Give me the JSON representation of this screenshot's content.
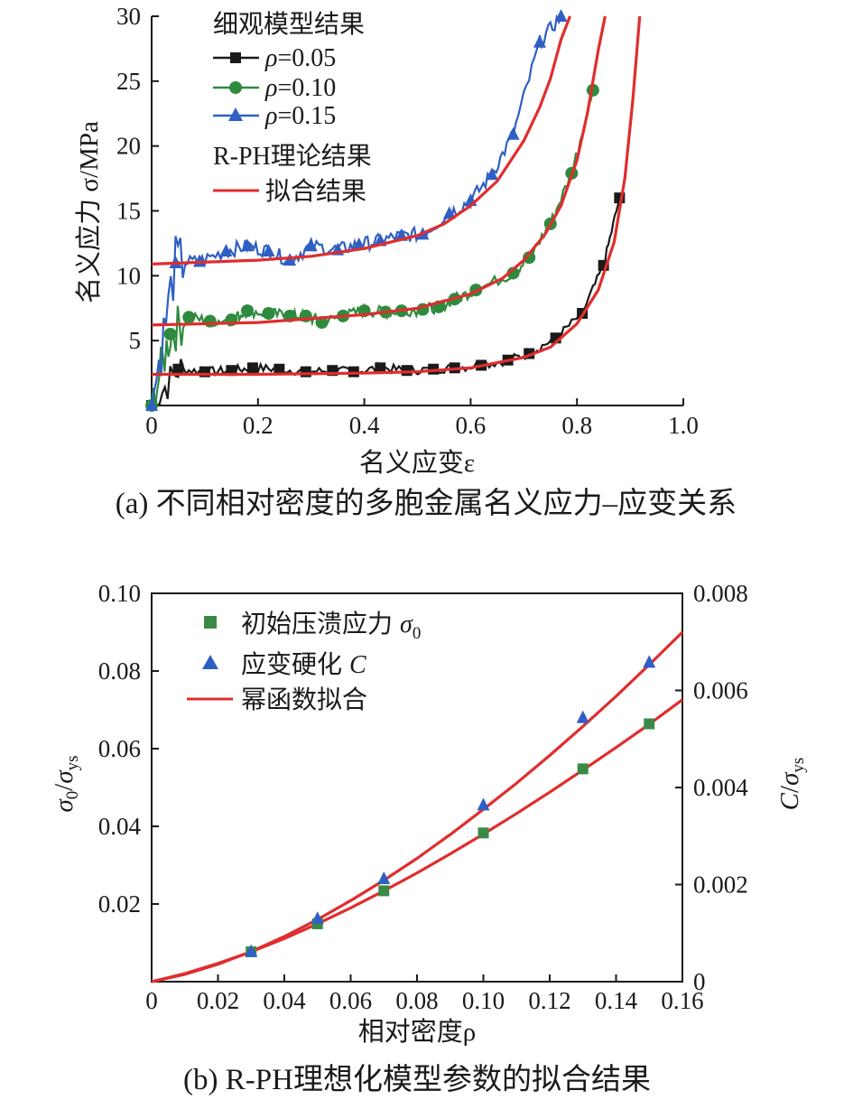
{
  "chart_data": [
    {
      "type": "line",
      "caption": "(a) 不同相对密度的多胞金属名义应力–应变关系",
      "xlabel": "名义应变ε",
      "ylabel": "名义应力 σ/MPa",
      "xlim": [
        0,
        1.0
      ],
      "ylim": [
        0,
        30
      ],
      "xticks": [
        "0",
        "0.2",
        "0.4",
        "0.6",
        "0.8",
        "1.0"
      ],
      "xtick_values": [
        0,
        0.2,
        0.4,
        0.6,
        0.8,
        1.0
      ],
      "yticks": [
        "5",
        "10",
        "15",
        "20",
        "25",
        "30"
      ],
      "ytick_values": [
        5,
        10,
        15,
        20,
        25,
        30
      ],
      "legend_group1_title": "细观模型结果",
      "legend_group2_title": "R-PH理论结果",
      "series": [
        {
          "name": "ρ=0.05",
          "symbol": "ρ",
          "value_text": "=0.05",
          "marker": "square",
          "color": "#1a1a1a",
          "x": [
            0,
            0.05,
            0.1,
            0.15,
            0.19,
            0.24,
            0.29,
            0.34,
            0.38,
            0.43,
            0.48,
            0.53,
            0.57,
            0.62,
            0.67,
            0.71,
            0.76,
            0.81,
            0.85,
            0.88
          ],
          "y": [
            0,
            2.8,
            2.6,
            2.7,
            2.9,
            2.8,
            2.6,
            2.7,
            2.6,
            2.9,
            2.7,
            2.8,
            2.9,
            3.1,
            3.5,
            4.0,
            5.2,
            7.1,
            10.8,
            16.0
          ]
        },
        {
          "name": "ρ=0.10",
          "symbol": "ρ",
          "value_text": "=0.10",
          "marker": "circle",
          "color": "#2e8b3e",
          "x": [
            0,
            0.035,
            0.07,
            0.11,
            0.15,
            0.18,
            0.22,
            0.26,
            0.29,
            0.32,
            0.36,
            0.4,
            0.44,
            0.47,
            0.51,
            0.54,
            0.57,
            0.61,
            0.68,
            0.71,
            0.75,
            0.79,
            0.83
          ],
          "y": [
            0,
            5.5,
            6.8,
            6.5,
            6.6,
            7.3,
            7.1,
            6.9,
            6.9,
            6.4,
            6.9,
            7.3,
            7.2,
            7.3,
            7.4,
            7.6,
            8.2,
            8.9,
            10.2,
            11.4,
            14.0,
            17.9,
            24.3
          ]
        },
        {
          "name": "ρ=0.15",
          "symbol": "ρ",
          "value_text": "=0.15",
          "marker": "triangle",
          "color": "#2f5fc4",
          "x": [
            0,
            0.045,
            0.09,
            0.14,
            0.18,
            0.22,
            0.26,
            0.3,
            0.35,
            0.39,
            0.43,
            0.47,
            0.51,
            0.56,
            0.6,
            0.64,
            0.68,
            0.73,
            0.77
          ],
          "y": [
            0,
            11.0,
            11.1,
            11.9,
            12.3,
            11.9,
            11.2,
            12.3,
            12.0,
            12.4,
            12.7,
            13.1,
            13.2,
            14.8,
            15.8,
            17.8,
            20.9,
            28.0,
            30.0
          ]
        }
      ],
      "fit": {
        "name": "拟合结果",
        "color": "#e02d2d",
        "curves": [
          {
            "x": [
              0,
              0.2,
              0.4,
              0.5,
              0.6,
              0.7,
              0.75,
              0.8,
              0.84,
              0.87,
              0.89,
              0.905,
              0.918
            ],
            "y": [
              2.4,
              2.4,
              2.5,
              2.6,
              2.9,
              3.7,
              4.5,
              6.3,
              8.9,
              12.6,
              17.5,
              23.5,
              30.0
            ]
          },
          {
            "x": [
              0,
              0.2,
              0.4,
              0.5,
              0.6,
              0.66,
              0.7,
              0.74,
              0.77,
              0.8,
              0.82,
              0.84,
              0.853
            ],
            "y": [
              6.2,
              6.4,
              7.0,
              7.5,
              8.6,
              9.8,
              11.2,
              13.2,
              15.4,
              18.9,
              22.6,
              27.4,
              30.0
            ]
          },
          {
            "x": [
              0,
              0.2,
              0.3,
              0.4,
              0.5,
              0.55,
              0.6,
              0.65,
              0.7,
              0.73,
              0.75,
              0.77,
              0.787
            ],
            "y": [
              10.9,
              11.2,
              11.5,
              12.1,
              13.1,
              14.0,
              15.4,
              17.3,
              20.4,
              23.0,
              25.2,
              28.2,
              30.0
            ]
          }
        ]
      }
    },
    {
      "type": "scatter",
      "caption": "(b) R-PH理想化模型参数的拟合结果",
      "xlabel": "相对密度ρ",
      "ylabel_left": "σ0/σys",
      "ylabel_right": "C/σys",
      "xlim": [
        0,
        0.16
      ],
      "ylim_left": [
        0,
        0.1
      ],
      "ylim_right": [
        0,
        0.008
      ],
      "xticks": [
        "0",
        "0.02",
        "0.04",
        "0.06",
        "0.08",
        "0.10",
        "0.12",
        "0.14",
        "0.16"
      ],
      "xtick_values": [
        0,
        0.02,
        0.04,
        0.06,
        0.08,
        0.1,
        0.12,
        0.14,
        0.16
      ],
      "yticks_left": [
        "0.02",
        "0.04",
        "0.06",
        "0.08",
        "0.10"
      ],
      "ytick_values_left": [
        0.02,
        0.04,
        0.06,
        0.08,
        0.1
      ],
      "yticks_right": [
        "0",
        "0.002",
        "0.004",
        "0.006",
        "0.008"
      ],
      "ytick_values_right": [
        0,
        0.002,
        0.004,
        0.006,
        0.008
      ],
      "series": [
        {
          "name": "初始压溃应力 σ0",
          "label": "初始压溃应力",
          "symbol": "σ",
          "sub": "0",
          "marker": "square",
          "color": "#3a8a45",
          "axis": "left",
          "x": [
            0.03,
            0.05,
            0.07,
            0.1,
            0.13,
            0.15
          ],
          "y": [
            0.0077,
            0.0149,
            0.0234,
            0.0383,
            0.0548,
            0.0664
          ]
        },
        {
          "name": "应变硬化 C",
          "label": "应变硬化",
          "symbol": "C",
          "marker": "triangle",
          "color": "#2f5fc4",
          "axis": "right",
          "x": [
            0.03,
            0.05,
            0.07,
            0.1,
            0.13,
            0.15
          ],
          "y": [
            0.00062,
            0.0013,
            0.00212,
            0.00364,
            0.00544,
            0.00658
          ]
        }
      ],
      "fit": {
        "name": "幂函数拟合",
        "color": "#e02d2d",
        "curves": [
          {
            "axis": "left",
            "x": [
              0,
              0.01,
              0.02,
              0.03,
              0.04,
              0.05,
              0.06,
              0.07,
              0.08,
              0.09,
              0.1,
              0.11,
              0.12,
              0.13,
              0.14,
              0.15,
              0.16
            ],
            "y": [
              0,
              0.0021,
              0.0047,
              0.0077,
              0.0111,
              0.0149,
              0.019,
              0.0234,
              0.028,
              0.0329,
              0.038,
              0.0433,
              0.0488,
              0.0545,
              0.0603,
              0.0663,
              0.0726
            ]
          },
          {
            "axis": "right",
            "x": [
              0,
              0.01,
              0.02,
              0.03,
              0.04,
              0.05,
              0.06,
              0.07,
              0.08,
              0.09,
              0.1,
              0.11,
              0.12,
              0.13,
              0.14,
              0.15,
              0.16
            ],
            "y": [
              0,
              0.00015,
              0.00036,
              0.00062,
              0.00093,
              0.00128,
              0.00167,
              0.00209,
              0.00254,
              0.00303,
              0.00355,
              0.00409,
              0.00466,
              0.00526,
              0.00588,
              0.00653,
              0.0072
            ]
          }
        ]
      }
    }
  ]
}
